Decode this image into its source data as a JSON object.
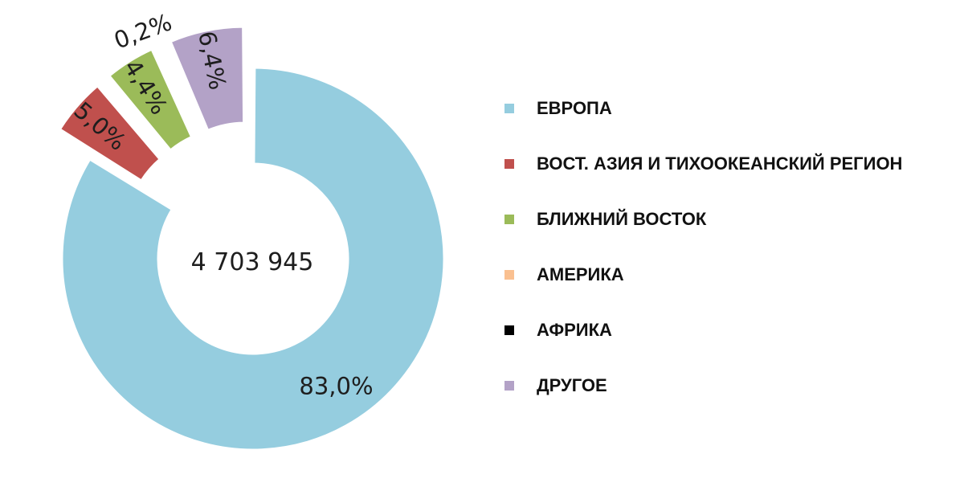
{
  "chart_data": {
    "type": "pie",
    "style": "donut, exploded minor slices",
    "center_total": "4 703 945",
    "legend_position": "right",
    "series": [
      {
        "name": "ЕВРОПА",
        "value": 83.0,
        "label": "83,0%",
        "color": "#95cddf"
      },
      {
        "name": "ВОСТ. АЗИЯ И ТИХООКЕАНСКИЙ РЕГИОН",
        "value": 5.0,
        "label": "5,0%",
        "color": "#c0504d"
      },
      {
        "name": "БЛИЖНИЙ ВОСТОК",
        "value": 4.4,
        "label": "4,4%",
        "color": "#9bbb59"
      },
      {
        "name": "АМЕРИКА",
        "value": 0.2,
        "label": "0,2%",
        "color": "#fac090"
      },
      {
        "name": "АФРИКА",
        "value": 0.0,
        "label": "",
        "color": "#000000"
      },
      {
        "name": "ДРУГОЕ",
        "value": 6.4,
        "label": "6,4%",
        "color": "#b3a2c7"
      }
    ]
  }
}
